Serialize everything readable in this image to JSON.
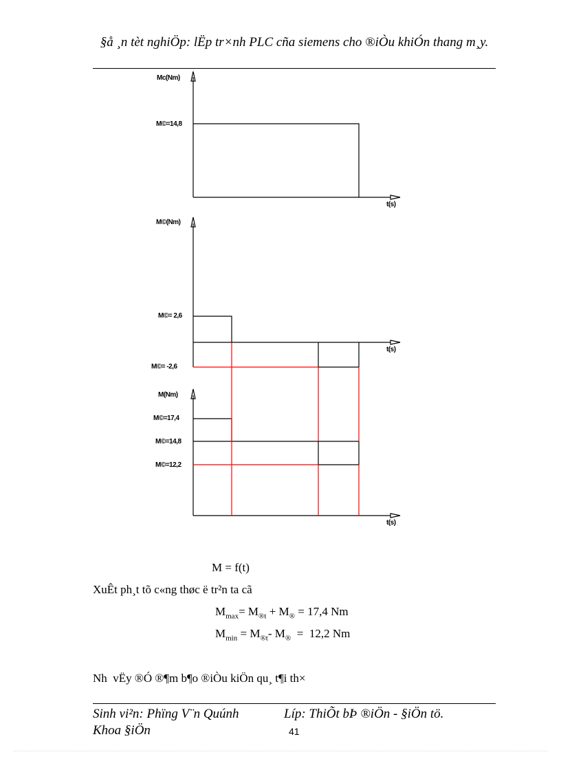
{
  "header": {
    "title": "§å ¸n tèt nghiÖp: lËp tr×nh PLC cña siemens cho ®iÒu khiÓn thang m¸y."
  },
  "diagrams": {
    "chart1": {
      "ylabel": "Mc(Nm)",
      "xlabel": "t(s)",
      "level_label": "M©=14,8"
    },
    "chart2": {
      "ylabel": "M©(Nm)",
      "xlabel": "t(s)",
      "pos_label": "M©= 2,6",
      "neg_label": "M©= -2,6"
    },
    "chart3": {
      "ylabel": "M(Nm)",
      "xlabel": "t(s)",
      "max_label": "M©=17,4",
      "mid_label": "M©=14,8",
      "min_label": "M©=12,2"
    },
    "colors": {
      "line": "#000000",
      "highlight": "#ff0000"
    }
  },
  "body": {
    "formula": "M = f(t)",
    "intro": "XuÊt ph¸t tõ c«ng thøc ë tr²n ta cã",
    "mmax": {
      "m": "M",
      "sub": "max",
      "rest": "= M",
      "sub2": "®t",
      "plus": " + M",
      "sub3": "®",
      "value": " = 17,4 Nm"
    },
    "mmin": {
      "m": "M",
      "sub": "min",
      "rest": " = M",
      "sub2": "®t",
      "minus": "- M",
      "sub3": "®",
      "value": "  =  12,2 Nm"
    },
    "conclusion": "Nh  vËy ®Ó ®¶m b¶o ®iÒu kiÖn qu¸ t¶i th×"
  },
  "footer": {
    "student": "Sinh vi²n: Phïng V¨n Quúnh",
    "class": "Líp: ThiÕt bÞ ®iÖn - §iÖn tö.",
    "faculty": "Khoa §iÖn",
    "page_number": "41"
  }
}
